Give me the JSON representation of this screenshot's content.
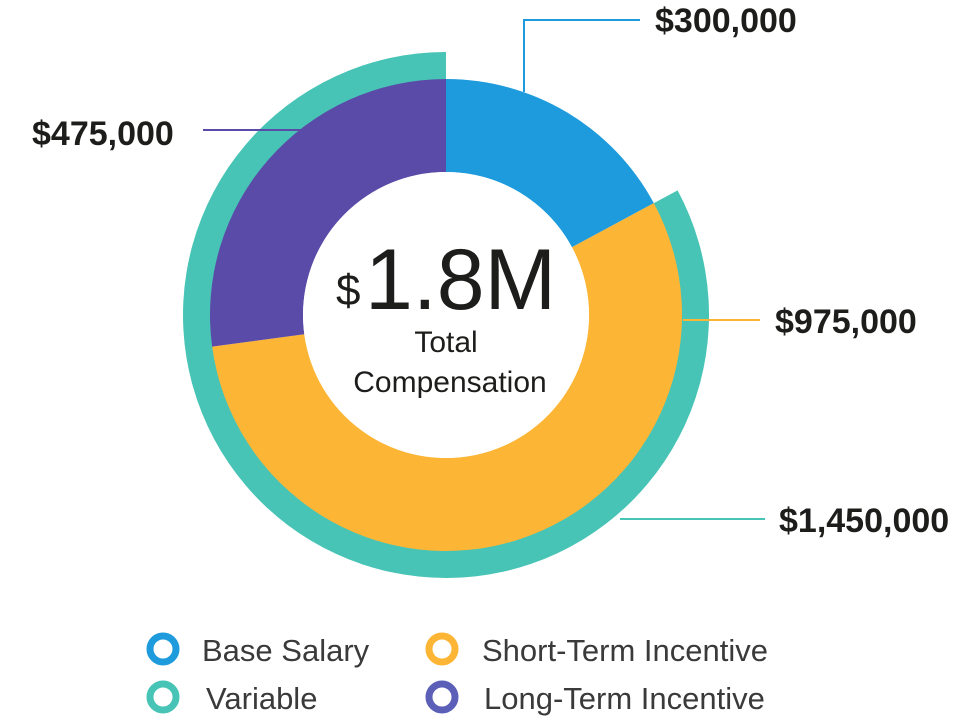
{
  "chart_data": {
    "type": "pie",
    "center": {
      "currency": "$",
      "value": "1.8M",
      "label_line1": "Total",
      "label_line2": "Compensation"
    },
    "slices": [
      {
        "name": "Base Salary",
        "value": 300000,
        "label": "$300,000",
        "color": "#1e9bdc"
      },
      {
        "name": "Short-Term Incentive",
        "value": 975000,
        "label": "$975,000",
        "color": "#fdb536"
      },
      {
        "name": "Long-Term Incentive",
        "value": 475000,
        "label": "$475,000",
        "color": "#5b4ba8"
      }
    ],
    "outer_ring": {
      "name": "Variable",
      "value": 1450000,
      "label": "$1,450,000",
      "color": "#47c4b5"
    },
    "legend": [
      {
        "label": "Base Salary",
        "color": "#1e9bdc"
      },
      {
        "label": "Short-Term Incentive",
        "color": "#fdb536"
      },
      {
        "label": "Variable",
        "color": "#47c4b5"
      },
      {
        "label": "Long-Term Incentive",
        "color": "#5b5fb8"
      }
    ],
    "legend_placement": "bottom"
  }
}
